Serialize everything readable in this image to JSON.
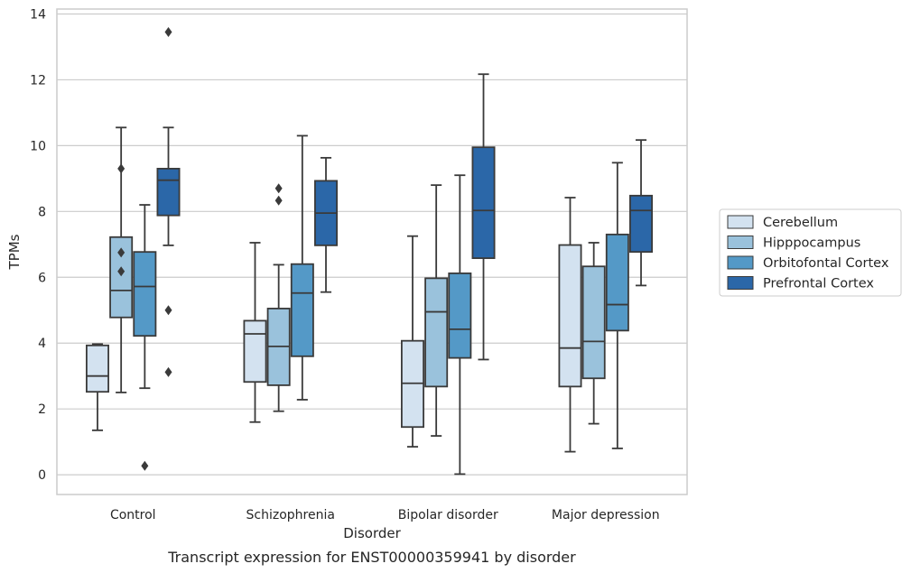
{
  "chart_data": {
    "type": "box",
    "caption": "Transcript expression for ENST00000359941 by disorder",
    "xlabel": "Disorder",
    "ylabel": "TPMs",
    "ylim": [
      -0.6,
      14.15
    ],
    "yticks": [
      0,
      2,
      4,
      6,
      8,
      10,
      12,
      14
    ],
    "grid": "horizontal",
    "legend_position": "right",
    "categories": [
      "Control",
      "Schizophrenia",
      "Bipolar disorder",
      "Major depression"
    ],
    "series": [
      {
        "name": "Cerebellum",
        "color": "#d3e2f0",
        "boxes": [
          {
            "whisker_low": 1.35,
            "q1": 2.52,
            "median": 3.0,
            "q3": 3.93,
            "whisker_high": 3.97,
            "outliers": []
          },
          {
            "whisker_low": 1.6,
            "q1": 2.82,
            "median": 4.28,
            "q3": 4.68,
            "whisker_high": 7.05,
            "outliers": []
          },
          {
            "whisker_low": 0.85,
            "q1": 1.45,
            "median": 2.78,
            "q3": 4.07,
            "whisker_high": 7.25,
            "outliers": []
          },
          {
            "whisker_low": 0.7,
            "q1": 2.68,
            "median": 3.85,
            "q3": 6.98,
            "whisker_high": 8.42,
            "outliers": []
          }
        ]
      },
      {
        "name": "Hipppocampus",
        "color": "#9ac2dc",
        "boxes": [
          {
            "whisker_low": 2.5,
            "q1": 4.78,
            "median": 5.6,
            "q3": 7.22,
            "whisker_high": 10.55,
            "outliers": [
              9.3,
              6.75,
              6.18
            ]
          },
          {
            "whisker_low": 1.93,
            "q1": 2.72,
            "median": 3.9,
            "q3": 5.05,
            "whisker_high": 6.38,
            "outliers": [
              8.7,
              8.33
            ]
          },
          {
            "whisker_low": 1.18,
            "q1": 2.68,
            "median": 4.95,
            "q3": 5.97,
            "whisker_high": 8.8,
            "outliers": []
          },
          {
            "whisker_low": 1.55,
            "q1": 2.93,
            "median": 4.05,
            "q3": 6.33,
            "whisker_high": 7.05,
            "outliers": []
          }
        ]
      },
      {
        "name": "Orbitofontal Cortex",
        "color": "#5499c7",
        "boxes": [
          {
            "whisker_low": 2.63,
            "q1": 4.22,
            "median": 5.72,
            "q3": 6.77,
            "whisker_high": 8.2,
            "outliers": [
              0.27
            ]
          },
          {
            "whisker_low": 2.28,
            "q1": 3.6,
            "median": 5.52,
            "q3": 6.4,
            "whisker_high": 10.3,
            "outliers": []
          },
          {
            "whisker_low": 0.02,
            "q1": 3.55,
            "median": 4.42,
            "q3": 6.12,
            "whisker_high": 9.1,
            "outliers": []
          },
          {
            "whisker_low": 0.8,
            "q1": 4.38,
            "median": 5.17,
            "q3": 7.3,
            "whisker_high": 9.48,
            "outliers": []
          }
        ]
      },
      {
        "name": "Prefrontal Cortex",
        "color": "#2b67a8",
        "boxes": [
          {
            "whisker_low": 6.97,
            "q1": 7.88,
            "median": 8.95,
            "q3": 9.3,
            "whisker_high": 10.55,
            "outliers": [
              13.45,
              5.0,
              3.12
            ]
          },
          {
            "whisker_low": 5.55,
            "q1": 6.97,
            "median": 7.95,
            "q3": 8.93,
            "whisker_high": 9.63,
            "outliers": []
          },
          {
            "whisker_low": 3.5,
            "q1": 6.58,
            "median": 8.03,
            "q3": 9.95,
            "whisker_high": 12.17,
            "outliers": []
          },
          {
            "whisker_low": 5.75,
            "q1": 6.77,
            "median": 8.03,
            "q3": 8.48,
            "whisker_high": 10.17,
            "outliers": []
          }
        ]
      }
    ]
  },
  "colors": {
    "background": "#ffffff",
    "grid": "#cccccc",
    "frame": "#cccccc",
    "box_edge": "#3a3a3a"
  }
}
